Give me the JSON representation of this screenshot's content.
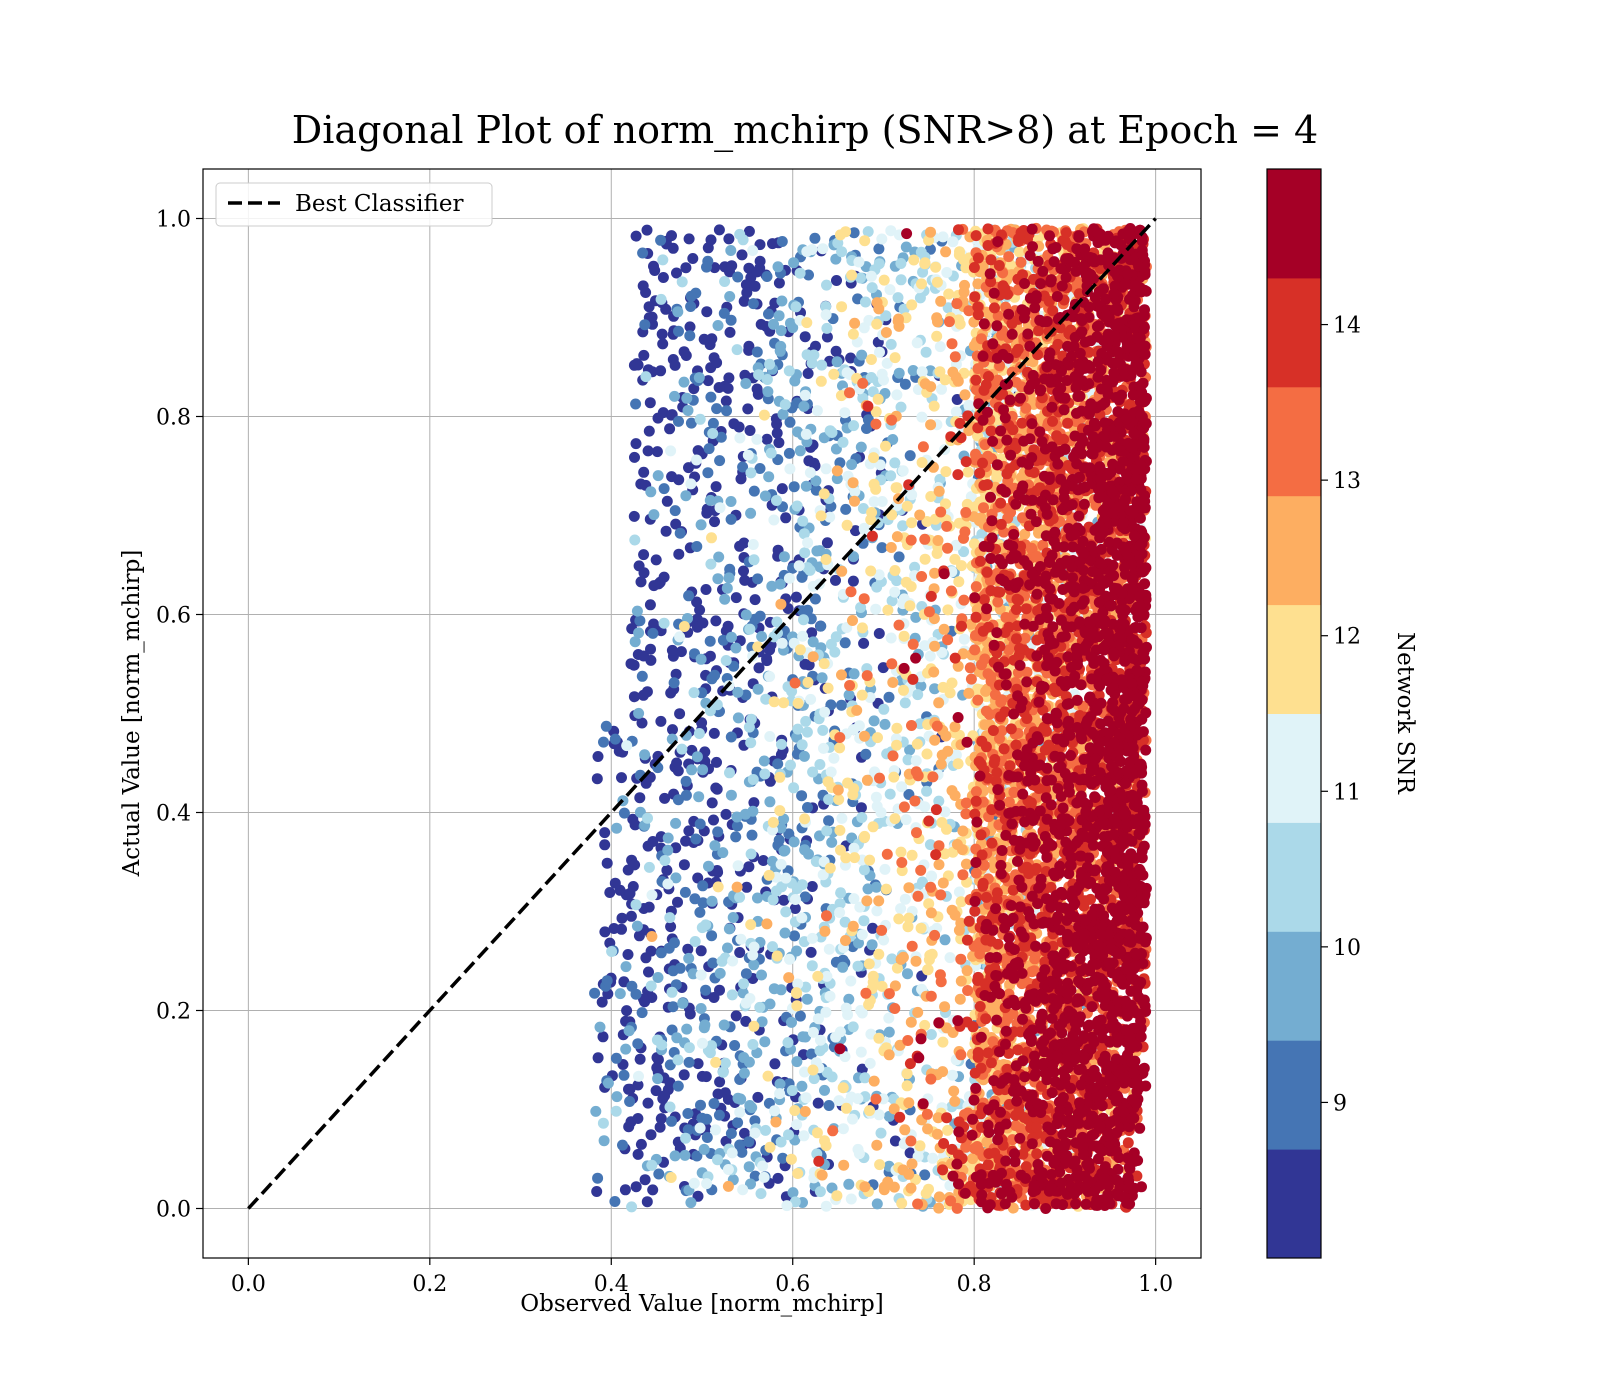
{
  "chart_data": {
    "type": "scatter",
    "title": "Diagonal Plot of norm_mchirp (SNR>8) at Epoch = 4",
    "xlabel": "Observed Value [norm_mchirp]",
    "ylabel": "Actual Value [norm_mchirp]",
    "xlim": [
      -0.05,
      1.05
    ],
    "ylim": [
      -0.05,
      1.05
    ],
    "xticks": [
      "0.0",
      "0.2",
      "0.4",
      "0.6",
      "0.8",
      "1.0"
    ],
    "yticks": [
      "0.0",
      "0.2",
      "0.4",
      "0.6",
      "0.8",
      "1.0"
    ],
    "grid": true,
    "legend": {
      "placement": "top-left",
      "entries": [
        {
          "label": "Best Classifier",
          "style": "dashed",
          "color": "#000000"
        }
      ]
    },
    "reference_line": {
      "name": "Best Classifier",
      "x": [
        0.0,
        1.0
      ],
      "y": [
        0.0,
        1.0
      ]
    },
    "colorbar": {
      "label": "Network SNR",
      "colormap": "RdYlBu_r",
      "range": [
        8.0,
        15.0
      ],
      "boundaries": [
        8.0,
        8.7,
        9.4,
        10.1,
        10.8,
        11.5,
        12.2,
        12.9,
        13.6,
        14.3,
        15.0
      ],
      "ticks": [
        "9",
        "10",
        "11",
        "12",
        "13",
        "14"
      ],
      "colors": [
        "#313695",
        "#4575b4",
        "#74add1",
        "#abd9e9",
        "#e0f3f8",
        "#fee090",
        "#fdae61",
        "#f46d43",
        "#d73027",
        "#a50026"
      ]
    },
    "series": [
      {
        "description": "points colored by Network SNR",
        "x_range": [
          0.38,
          0.99
        ],
        "y_range": [
          0.0,
          0.99
        ]
      }
    ]
  }
}
